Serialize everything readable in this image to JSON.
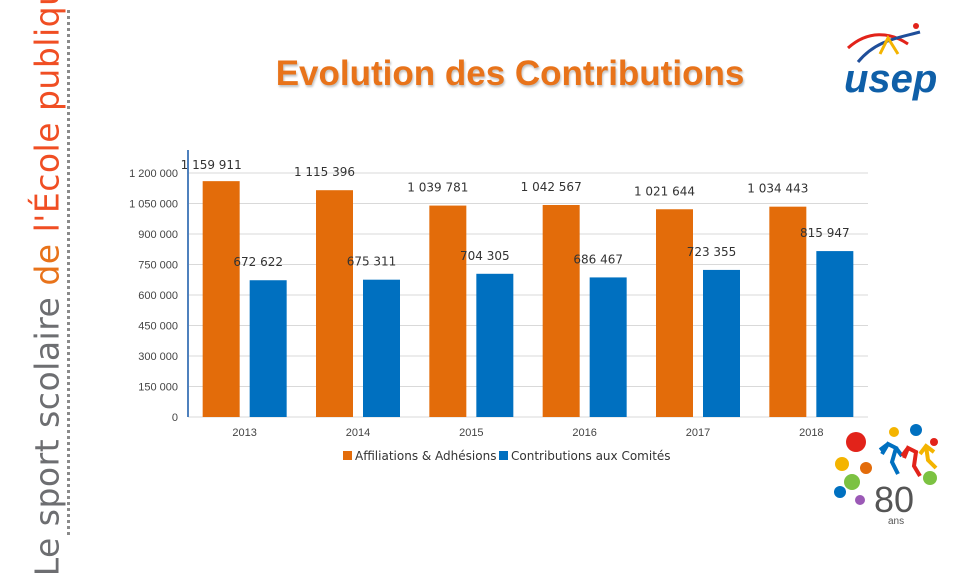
{
  "slide": {
    "title": "Evolution des Contributions",
    "sidebar_words": [
      "Le sport scolaire",
      "de",
      "l'École publique"
    ],
    "logo_text": "usep",
    "badge_number": "80",
    "badge_unit": "ans"
  },
  "colors": {
    "orange": "#e36c0a",
    "blue": "#0070c0",
    "title": "#e8731a",
    "axis": "#4f81bd",
    "grid": "#d9d9d9"
  },
  "chart_data": {
    "type": "bar",
    "title": "",
    "xlabel": "",
    "ylabel": "",
    "categories": [
      "2013",
      "2014",
      "2015",
      "2016",
      "2017",
      "2018"
    ],
    "series": [
      {
        "name": "Affiliations & Adhésions",
        "color": "#e36c0a",
        "values": [
          1159911,
          1115396,
          1039781,
          1042567,
          1021644,
          1034443
        ],
        "labels": [
          "1 159 911",
          "1 115 396",
          "1 039 781",
          "1 042 567",
          "1 021 644",
          "1 034 443"
        ]
      },
      {
        "name": "Contributions aux Comités",
        "color": "#0070c0",
        "values": [
          672622,
          675311,
          704305,
          686467,
          723355,
          815947
        ],
        "labels": [
          "672 622",
          "675 311",
          "704 305",
          "686 467",
          "723 355",
          "815 947"
        ]
      }
    ],
    "ylim": [
      0,
      1200000
    ],
    "yticks": [
      0,
      150000,
      300000,
      450000,
      600000,
      750000,
      900000,
      1050000,
      1200000
    ],
    "ytick_labels": [
      "0",
      "150 000",
      "300 000",
      "450 000",
      "600 000",
      "750 000",
      "900 000",
      "1 050 000",
      "1 200 000"
    ],
    "grid": true,
    "legend_position": "bottom"
  }
}
